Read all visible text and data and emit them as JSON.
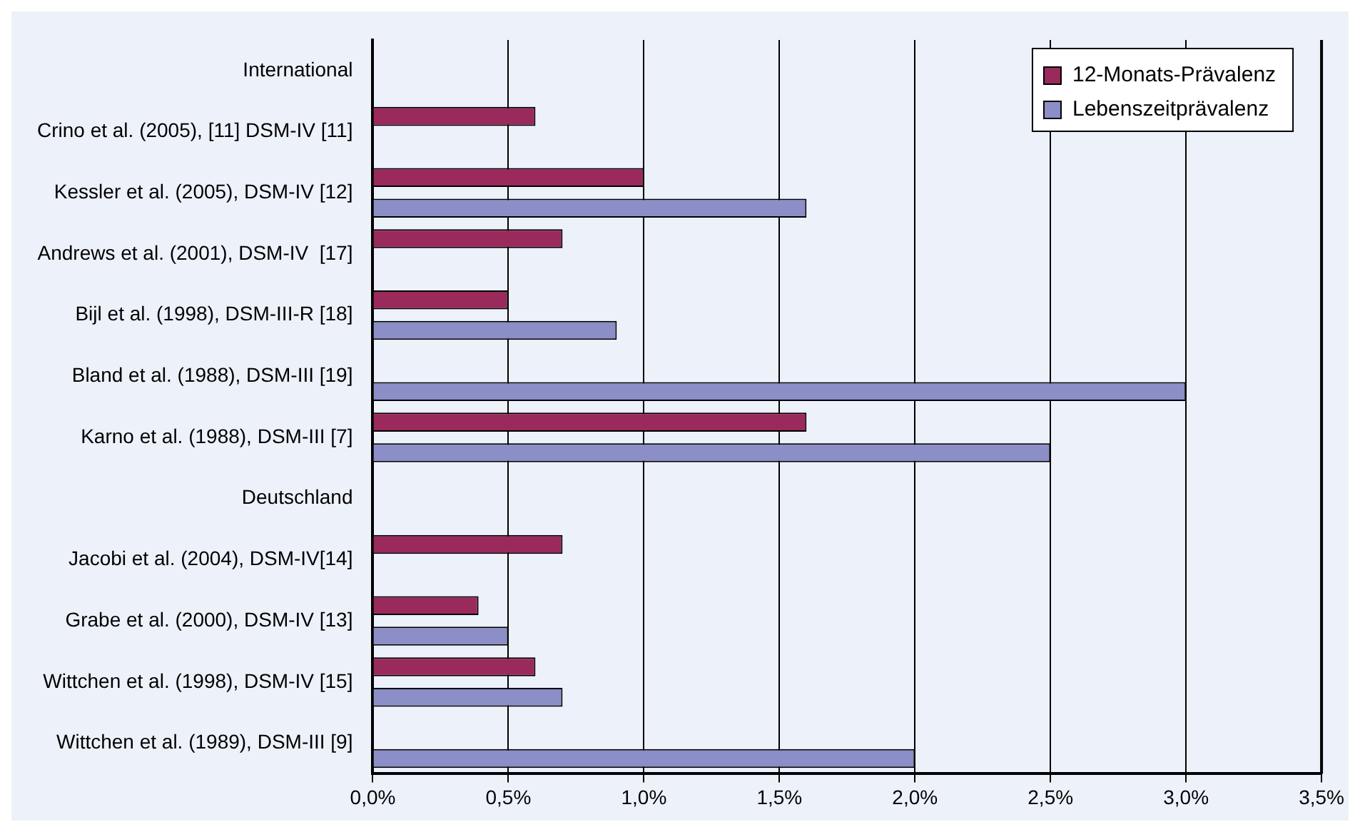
{
  "chart_data": {
    "type": "bar",
    "orientation": "horizontal",
    "categories": [
      "International",
      "Crino et al. (2005), [11] DSM-IV [11]",
      "Kessler et al. (2005), DSM-IV [12]",
      "Andrews et al. (2001), DSM-IV  [17]",
      "Bijl et al. (1998), DSM-III-R [18]",
      "Bland et al. (1988), DSM-III [19]",
      "Karno et al. (1988), DSM-III [7]",
      "Deutschland",
      "Jacobi et al. (2004), DSM-IV[14]",
      "Grabe et al. (2000), DSM-IV [13]",
      "Wittchen et al. (1998), DSM-IV [15]",
      "Wittchen et al. (1989), DSM-III [9]"
    ],
    "series": [
      {
        "name": "12-Monats-Prävalenz",
        "color": "#9b2a5c",
        "values": [
          null,
          0.6,
          1.0,
          0.7,
          0.5,
          null,
          1.6,
          null,
          0.7,
          0.39,
          0.6,
          null
        ]
      },
      {
        "name": "Lebenszeitprävalenz",
        "color": "#8c8ec8",
        "values": [
          null,
          null,
          1.6,
          null,
          0.9,
          3.0,
          2.5,
          null,
          null,
          0.5,
          0.7,
          2.0
        ]
      }
    ],
    "xlim": [
      0,
      3.5
    ],
    "xticks": [
      {
        "value": 0,
        "label": "0,0%"
      },
      {
        "value": 0.5,
        "label": "0,5%"
      },
      {
        "value": 1,
        "label": "1,0%"
      },
      {
        "value": 1.5,
        "label": "1,5%"
      },
      {
        "value": 2,
        "label": "2,0%"
      },
      {
        "value": 2.5,
        "label": "2,5%"
      },
      {
        "value": 3,
        "label": "3,0%"
      },
      {
        "value": 3.5,
        "label": "3,5%"
      }
    ],
    "grid": "x",
    "legend": "top right"
  }
}
